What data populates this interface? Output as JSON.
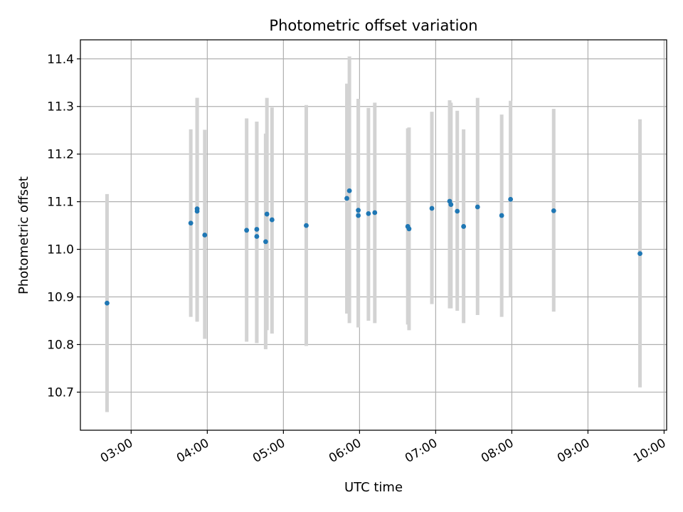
{
  "chart_data": {
    "type": "scatter",
    "title": "Photometric offset variation",
    "xlabel": "UTC time",
    "ylabel": "Photometric offset",
    "x_unit": "time of day (UTC, HH:MM)",
    "xlim": [
      "02:20",
      "10:02"
    ],
    "ylim": [
      10.62,
      11.44
    ],
    "grid": true,
    "x_ticks": [
      "03:00",
      "04:00",
      "05:00",
      "06:00",
      "07:00",
      "08:00",
      "09:00",
      "10:00"
    ],
    "y_ticks": [
      "10.7",
      "10.8",
      "10.9",
      "11.0",
      "11.1",
      "11.2",
      "11.3",
      "11.4"
    ],
    "errorbar_color": "#d3d3d3",
    "point_color": "#1f77b4",
    "points": [
      {
        "x": "02:41",
        "y": 10.887,
        "lo": 10.658,
        "hi": 11.116
      },
      {
        "x": "03:47",
        "y": 11.055,
        "lo": 10.858,
        "hi": 11.252
      },
      {
        "x": "03:52",
        "y": 11.08,
        "lo": 10.848,
        "hi": 11.318
      },
      {
        "x": "03:52",
        "y": 11.085,
        "lo": 10.85,
        "hi": 11.318
      },
      {
        "x": "03:58",
        "y": 11.03,
        "lo": 10.812,
        "hi": 11.251
      },
      {
        "x": "04:31",
        "y": 11.04,
        "lo": 10.806,
        "hi": 11.275
      },
      {
        "x": "04:39",
        "y": 11.027,
        "lo": 10.803,
        "hi": 11.268
      },
      {
        "x": "04:39",
        "y": 11.042,
        "lo": 10.803,
        "hi": 11.268
      },
      {
        "x": "04:46",
        "y": 11.016,
        "lo": 10.79,
        "hi": 11.243
      },
      {
        "x": "04:47",
        "y": 11.074,
        "lo": 10.83,
        "hi": 11.318
      },
      {
        "x": "04:51",
        "y": 11.062,
        "lo": 10.823,
        "hi": 11.298
      },
      {
        "x": "05:18",
        "y": 11.05,
        "lo": 10.797,
        "hi": 11.303
      },
      {
        "x": "05:50",
        "y": 11.107,
        "lo": 10.865,
        "hi": 11.348
      },
      {
        "x": "05:52",
        "y": 11.123,
        "lo": 10.845,
        "hi": 11.405
      },
      {
        "x": "05:59",
        "y": 11.071,
        "lo": 10.836,
        "hi": 11.316
      },
      {
        "x": "05:59",
        "y": 11.082,
        "lo": 10.836,
        "hi": 11.316
      },
      {
        "x": "06:07",
        "y": 11.075,
        "lo": 10.85,
        "hi": 11.297
      },
      {
        "x": "06:12",
        "y": 11.077,
        "lo": 10.845,
        "hi": 11.308
      },
      {
        "x": "06:38",
        "y": 11.048,
        "lo": 10.842,
        "hi": 11.254
      },
      {
        "x": "06:39",
        "y": 11.043,
        "lo": 10.83,
        "hi": 11.256
      },
      {
        "x": "06:57",
        "y": 11.086,
        "lo": 10.885,
        "hi": 11.289
      },
      {
        "x": "07:11",
        "y": 11.101,
        "lo": 10.876,
        "hi": 11.313
      },
      {
        "x": "07:12",
        "y": 11.094,
        "lo": 10.876,
        "hi": 11.308
      },
      {
        "x": "07:17",
        "y": 11.08,
        "lo": 10.871,
        "hi": 11.291
      },
      {
        "x": "07:22",
        "y": 11.048,
        "lo": 10.845,
        "hi": 11.252
      },
      {
        "x": "07:33",
        "y": 11.089,
        "lo": 10.862,
        "hi": 11.318
      },
      {
        "x": "07:52",
        "y": 11.071,
        "lo": 10.858,
        "hi": 11.283
      },
      {
        "x": "07:59",
        "y": 11.105,
        "lo": 10.9,
        "hi": 11.312
      },
      {
        "x": "08:33",
        "y": 11.081,
        "lo": 10.869,
        "hi": 11.295
      },
      {
        "x": "09:41",
        "y": 10.991,
        "lo": 10.71,
        "hi": 11.273
      }
    ]
  }
}
